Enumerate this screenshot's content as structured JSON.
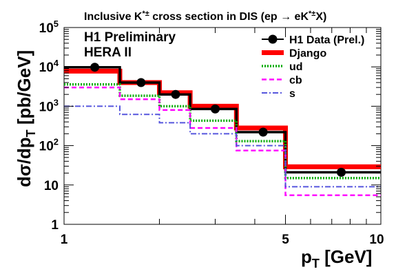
{
  "chart_data": {
    "type": "line",
    "title_main": "Inclusive K",
    "title_sup": "*±",
    "title_rest": " cross section in DIS (ep ",
    "title_arrow": "→",
    "title_rest2": " eK",
    "title_sup2": "*±",
    "title_end": "X)",
    "experiment_label": "H1 Preliminary",
    "run_label": "HERA II",
    "xlabel_main": "p",
    "xlabel_sub": "T",
    "xlabel_unit": " [GeV]",
    "ylabel_main": "dσ/dp",
    "ylabel_sub": "T",
    "ylabel_unit": " [pb/GeV]",
    "xscale": "log",
    "yscale": "log",
    "xlim": [
      1,
      10
    ],
    "ylim": [
      1,
      100000
    ],
    "x_ticks": [
      {
        "value": 1,
        "label": "1"
      },
      {
        "value": 5,
        "label": "5"
      },
      {
        "value": 10,
        "label": "10"
      }
    ],
    "y_ticks": [
      {
        "value": 1,
        "label": "1"
      },
      {
        "value": 10,
        "label": "10"
      },
      {
        "value": 100,
        "label_base": "10",
        "label_exp": "2"
      },
      {
        "value": 1000,
        "label_base": "10",
        "label_exp": "3"
      },
      {
        "value": 10000,
        "label_base": "10",
        "label_exp": "4"
      },
      {
        "value": 100000,
        "label_base": "10",
        "label_exp": "5"
      }
    ],
    "bin_edges": [
      1.0,
      1.5,
      2.0,
      2.5,
      3.5,
      5.0,
      10.0
    ],
    "data": {
      "name": "H1 Data (Prel.)",
      "x": [
        1.25,
        1.75,
        2.25,
        3.0,
        4.25,
        7.5
      ],
      "y": [
        9800,
        4000,
        2000,
        850,
        220,
        21
      ],
      "color": "#000000"
    },
    "histograms": [
      {
        "name": "Django",
        "values": [
          7800,
          4000,
          2200,
          1000,
          280,
          29
        ],
        "color": "#ff0000",
        "style": "solid",
        "width": 7
      },
      {
        "name": "H1 Data (Prel.)",
        "values": [
          9800,
          4000,
          2000,
          850,
          220,
          21
        ],
        "color": "#000000",
        "style": "solid",
        "width": 3.5
      },
      {
        "name": "ud",
        "values": [
          3600,
          1850,
          1000,
          430,
          130,
          15
        ],
        "color": "#00aa00",
        "style": "dotted",
        "width": 3.5
      },
      {
        "name": "cb",
        "values": [
          3000,
          1500,
          800,
          280,
          75,
          5.5
        ],
        "color": "#ff00ff",
        "style": "dashed",
        "width": 2.5
      },
      {
        "name": "s",
        "values": [
          1000,
          620,
          380,
          200,
          100,
          9
        ],
        "color": "#5555dd",
        "style": "dashdot",
        "width": 2
      }
    ],
    "legend": [
      {
        "name": "H1 Data (Prel.)",
        "kind": "marker",
        "color": "#000000"
      },
      {
        "name": "Django",
        "kind": "line",
        "color": "#ff0000",
        "style": "solid"
      },
      {
        "name": "ud",
        "kind": "line",
        "color": "#00aa00",
        "style": "dotted"
      },
      {
        "name": "cb",
        "kind": "line",
        "color": "#ff00ff",
        "style": "dashed"
      },
      {
        "name": "s",
        "kind": "line",
        "color": "#5555dd",
        "style": "dashdot"
      }
    ],
    "legend_position": "top-right",
    "grid": false
  }
}
